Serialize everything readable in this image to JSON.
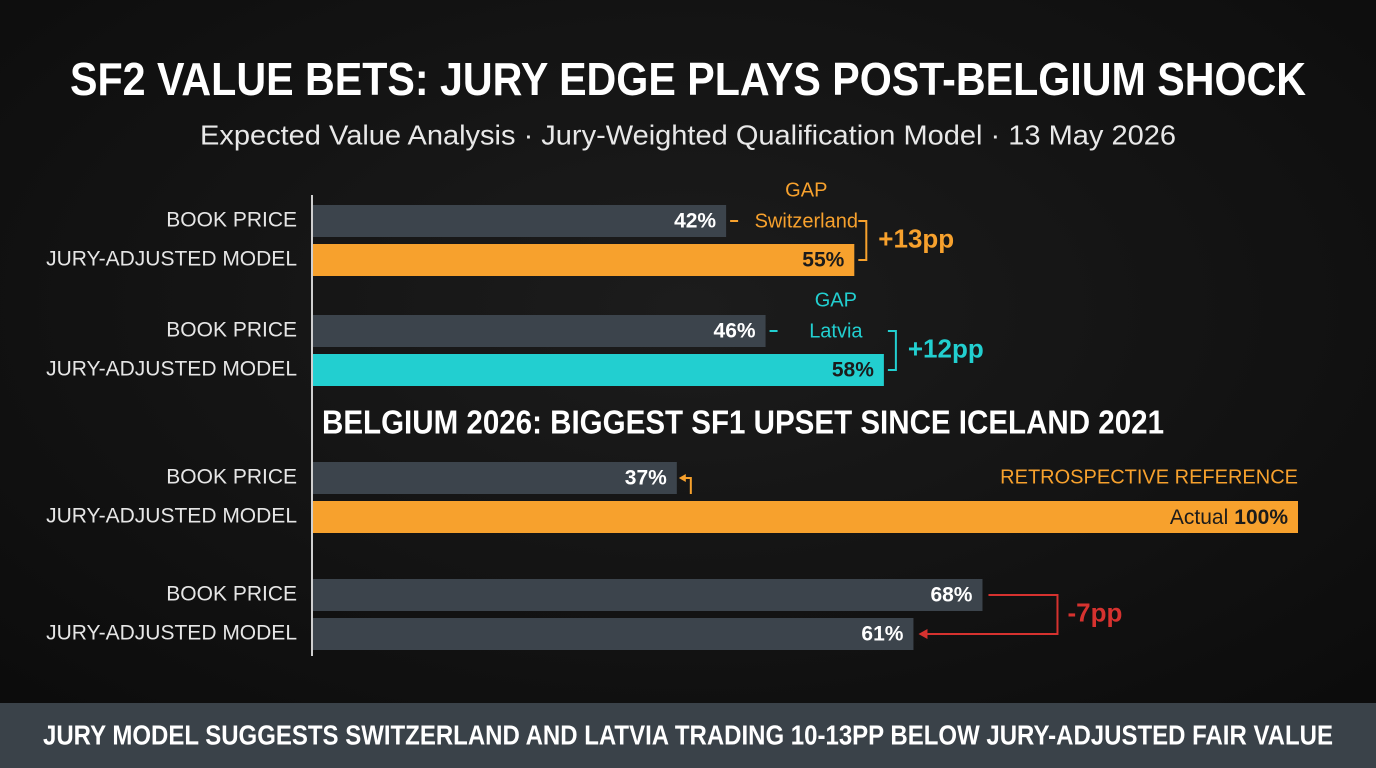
{
  "chart_data": {
    "type": "grouped-hbar",
    "title": "SF2 VALUE BETS: JURY EDGE PLAYS POST-BELGIUM SHOCK",
    "subtitle": "Expected Value Analysis · Jury-Weighted Qualification Model · 13 May 2026",
    "xlim": [
      0,
      100
    ],
    "groups": [
      {
        "categories": [
          "BOOK PRICE",
          "JURY-ADJUSTED MODEL"
        ],
        "values": [
          42,
          55
        ],
        "value_labels": [
          "42%",
          "55%"
        ],
        "colors": [
          "#3c444c",
          "#f7a12d"
        ],
        "gap_label": "GAP",
        "gap_name": "Switzerland",
        "gap": "+13pp",
        "gap_color": "#f7a12d"
      },
      {
        "categories": [
          "BOOK PRICE",
          "JURY-ADJUSTED MODEL"
        ],
        "values": [
          46,
          58
        ],
        "value_labels": [
          "46%",
          "58%"
        ],
        "colors": [
          "#3c444c",
          "#22cfd0"
        ],
        "gap_label": "GAP",
        "gap_name": "Latvia",
        "gap": "+12pp",
        "gap_color": "#22cfd0"
      },
      {
        "heading": "BELGIUM 2026: BIGGEST SF1 UPSET SINCE ICELAND 2021",
        "categories": [
          "BOOK PRICE",
          "JURY-ADJUSTED MODEL"
        ],
        "values": [
          37,
          100
        ],
        "value_labels": [
          "37%",
          "100%"
        ],
        "prefix": "Actual",
        "colors": [
          "#3c444c",
          "#f7a12d"
        ],
        "annotation": "RETROSPECTIVE REFERENCE",
        "gap_color": "#f7a12d"
      },
      {
        "categories": [
          "BOOK PRICE",
          "JURY-ADJUSTED MODEL"
        ],
        "values": [
          68,
          61
        ],
        "value_labels": [
          "68%",
          "61%"
        ],
        "colors": [
          "#3c444c",
          "#3c444c"
        ],
        "gap": "-7pp",
        "gap_color": "#d6322f"
      }
    ],
    "footer": "JURY MODEL SUGGESTS SWITZERLAND AND LATVIA TRADING 10-13PP BELOW JURY-ADJUSTED FAIR VALUE"
  }
}
